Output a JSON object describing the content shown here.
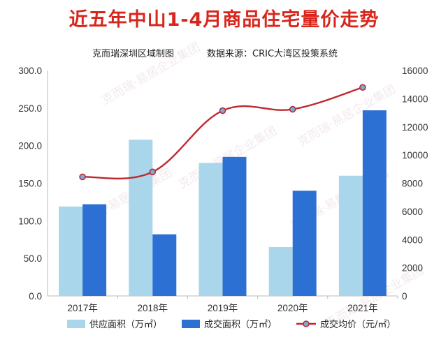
{
  "header": {
    "title": "近五年中山1-4月商品住宅量价走势",
    "subtitle_left": "克而瑞深圳区域制图",
    "subtitle_right": "数据来源：CRIC大湾区投策系统"
  },
  "watermark": "克而瑞·易居企业集团",
  "chart_data": {
    "type": "bar+line",
    "categories": [
      "2017年",
      "2018年",
      "2019年",
      "2020年",
      "2021年"
    ],
    "series": [
      {
        "name": "供应面积（万㎡）",
        "type": "bar",
        "axis": "left",
        "color": "#a9d6ea",
        "values": [
          119,
          208,
          177,
          65,
          160
        ]
      },
      {
        "name": "成交面积（万㎡）",
        "type": "bar",
        "axis": "left",
        "color": "#2d70d3",
        "values": [
          122,
          82,
          185,
          140,
          247
        ]
      },
      {
        "name": "成交均价（元/㎡）",
        "type": "line",
        "axis": "right",
        "color": "#c0272d",
        "marker_color": "#6fb0dc",
        "values": [
          8450,
          8800,
          13150,
          13250,
          14800
        ]
      }
    ],
    "y_left": {
      "min": 0,
      "max": 300,
      "step": 50,
      "ticks": [
        "0.0",
        "50.0",
        "100.0",
        "150.0",
        "200.0",
        "250.0",
        "300.0"
      ]
    },
    "y_right": {
      "min": 0,
      "max": 16000,
      "step": 2000,
      "ticks": [
        "0",
        "2000",
        "4000",
        "6000",
        "8000",
        "10000",
        "12000",
        "14000",
        "16000"
      ]
    },
    "grid": false,
    "legend_position": "bottom"
  }
}
